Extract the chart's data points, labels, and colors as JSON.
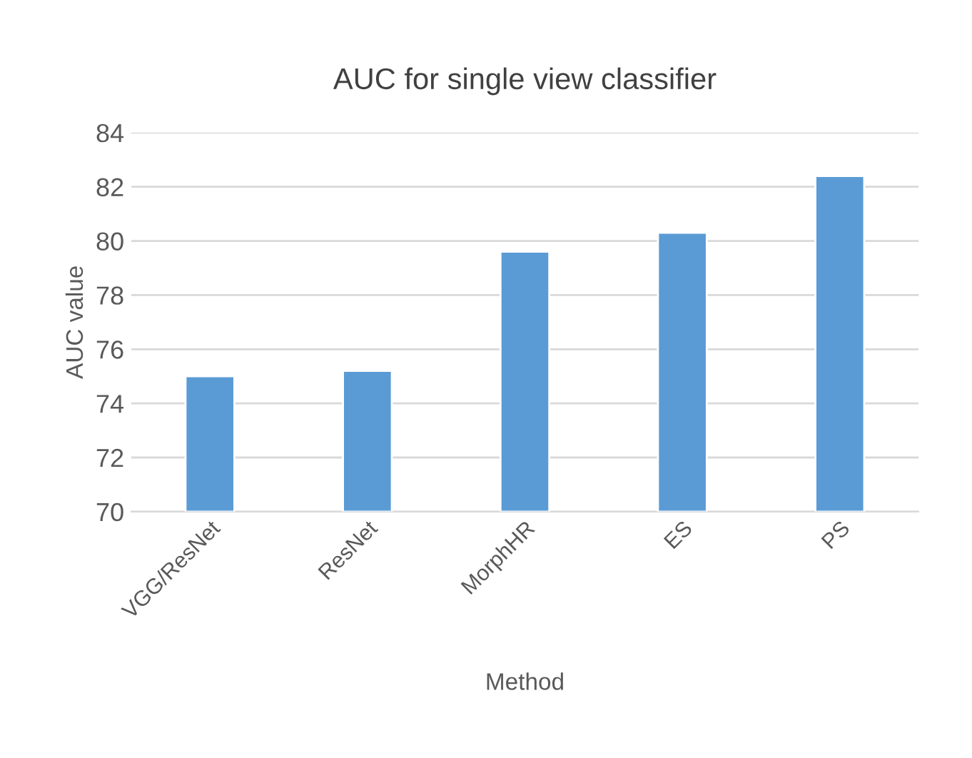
{
  "chart_data": {
    "type": "bar",
    "title": "AUC for single view classifier",
    "xlabel": "Method",
    "ylabel": "AUC value",
    "categories": [
      "VGG/ResNet",
      "ResNet",
      "MorphHR",
      "ES",
      "PS"
    ],
    "values": [
      75.0,
      75.2,
      79.6,
      80.3,
      82.4
    ],
    "color": "#5b9bd5",
    "ylim": [
      70,
      84
    ],
    "yticks": [
      70,
      72,
      74,
      76,
      78,
      80,
      82,
      84
    ],
    "grid": "y"
  }
}
